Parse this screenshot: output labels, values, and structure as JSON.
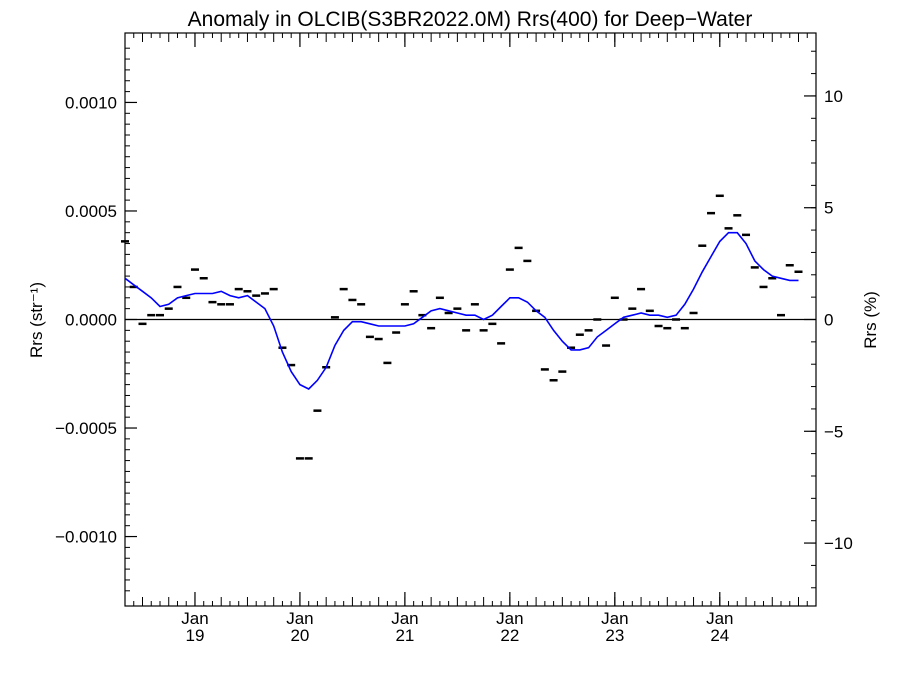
{
  "chart_data": {
    "type": "line",
    "title": "Anomaly in OLCIB(S3BR2022.0M) Rrs(400) for Deep−Water",
    "ylabel_left": "Rrs (str⁻¹)",
    "ylabel_right": "Rrs (%)",
    "x_ticks": [
      {
        "month": "Jan",
        "year": "19"
      },
      {
        "month": "Jan",
        "year": "20"
      },
      {
        "month": "Jan",
        "year": "21"
      },
      {
        "month": "Jan",
        "year": "22"
      },
      {
        "month": "Jan",
        "year": "23"
      },
      {
        "month": "Jan",
        "year": "24"
      }
    ],
    "xlim": [
      "2018-05",
      "2024-12"
    ],
    "ylim": [
      -0.00132,
      0.00132
    ],
    "y_ticks_left": [
      "0.0010",
      "0.0005",
      "0.0000",
      "−0.0005",
      "−0.0010"
    ],
    "y_ticks_left_values": [
      0.001,
      0.0005,
      0,
      -0.0005,
      -0.001
    ],
    "y_ticks_right": [
      "10",
      "5",
      "0",
      "−5",
      "−10"
    ],
    "y_ticks_right_values": [
      10,
      5,
      0,
      -5,
      -10
    ],
    "right_axis_scale": "percent (10% = 0.00103)",
    "zero_line": true,
    "series": [
      {
        "style": "markers",
        "color": "#000000",
        "points": [
          [
            "2018-05",
            0.00036
          ],
          [
            "2018-06",
            0.00015
          ],
          [
            "2018-07",
            -2e-05
          ],
          [
            "2018-08",
            2e-05
          ],
          [
            "2018-09",
            2e-05
          ],
          [
            "2018-10",
            5e-05
          ],
          [
            "2018-11",
            0.00015
          ],
          [
            "2018-12",
            0.0001
          ],
          [
            "2019-01",
            0.00023
          ],
          [
            "2019-02",
            0.00019
          ],
          [
            "2019-03",
            8e-05
          ],
          [
            "2019-04",
            7e-05
          ],
          [
            "2019-05",
            7e-05
          ],
          [
            "2019-06",
            0.00014
          ],
          [
            "2019-07",
            0.00013
          ],
          [
            "2019-08",
            0.00011
          ],
          [
            "2019-09",
            0.00012
          ],
          [
            "2019-10",
            0.00014
          ],
          [
            "2019-11",
            -0.00013
          ],
          [
            "2019-12",
            -0.00021
          ],
          [
            "2020-01",
            -0.00064
          ],
          [
            "2020-02",
            -0.00064
          ],
          [
            "2020-03",
            -0.00042
          ],
          [
            "2020-04",
            -0.00022
          ],
          [
            "2020-05",
            1e-05
          ],
          [
            "2020-06",
            0.00014
          ],
          [
            "2020-07",
            9e-05
          ],
          [
            "2020-08",
            7e-05
          ],
          [
            "2020-09",
            -8e-05
          ],
          [
            "2020-10",
            -9e-05
          ],
          [
            "2020-11",
            -0.0002
          ],
          [
            "2020-12",
            -6e-05
          ],
          [
            "2021-01",
            7e-05
          ],
          [
            "2021-02",
            0.00013
          ],
          [
            "2021-03",
            2e-05
          ],
          [
            "2021-04",
            -4e-05
          ],
          [
            "2021-05",
            0.0001
          ],
          [
            "2021-06",
            3e-05
          ],
          [
            "2021-07",
            5e-05
          ],
          [
            "2021-08",
            -5e-05
          ],
          [
            "2021-09",
            7e-05
          ],
          [
            "2021-10",
            -5e-05
          ],
          [
            "2021-11",
            -2e-05
          ],
          [
            "2021-12",
            -0.00011
          ],
          [
            "2022-01",
            0.00023
          ],
          [
            "2022-02",
            0.00033
          ],
          [
            "2022-03",
            0.00027
          ],
          [
            "2022-04",
            4e-05
          ],
          [
            "2022-05",
            -0.00023
          ],
          [
            "2022-06",
            -0.00028
          ],
          [
            "2022-07",
            -0.00024
          ],
          [
            "2022-08",
            -0.00013
          ],
          [
            "2022-09",
            -7e-05
          ],
          [
            "2022-10",
            -5e-05
          ],
          [
            "2022-11",
            0.0
          ],
          [
            "2022-12",
            -0.00012
          ],
          [
            "2023-01",
            0.0001
          ],
          [
            "2023-02",
            0.0
          ],
          [
            "2023-03",
            5e-05
          ],
          [
            "2023-04",
            0.00014
          ],
          [
            "2023-05",
            4e-05
          ],
          [
            "2023-06",
            -3e-05
          ],
          [
            "2023-07",
            -4e-05
          ],
          [
            "2023-08",
            0.0
          ],
          [
            "2023-09",
            -4e-05
          ],
          [
            "2023-10",
            3e-05
          ],
          [
            "2023-11",
            0.00034
          ],
          [
            "2023-12",
            0.00049
          ],
          [
            "2024-01",
            0.00057
          ],
          [
            "2024-02",
            0.00042
          ],
          [
            "2024-03",
            0.00048
          ],
          [
            "2024-04",
            0.00039
          ],
          [
            "2024-05",
            0.00024
          ],
          [
            "2024-06",
            0.00015
          ],
          [
            "2024-07",
            0.00019
          ],
          [
            "2024-08",
            2e-05
          ],
          [
            "2024-09",
            0.00025
          ],
          [
            "2024-10",
            0.00022
          ]
        ]
      },
      {
        "style": "line",
        "color": "#0000ff",
        "points": [
          [
            "2018-05",
            0.00019
          ],
          [
            "2018-06",
            0.00016
          ],
          [
            "2018-07",
            0.00013
          ],
          [
            "2018-08",
            0.0001
          ],
          [
            "2018-09",
            6e-05
          ],
          [
            "2018-10",
            7e-05
          ],
          [
            "2018-11",
            0.0001
          ],
          [
            "2018-12",
            0.00011
          ],
          [
            "2019-01",
            0.00012
          ],
          [
            "2019-02",
            0.00012
          ],
          [
            "2019-03",
            0.00012
          ],
          [
            "2019-04",
            0.00013
          ],
          [
            "2019-05",
            0.00011
          ],
          [
            "2019-06",
            0.0001
          ],
          [
            "2019-07",
            0.00011
          ],
          [
            "2019-08",
            8e-05
          ],
          [
            "2019-09",
            5e-05
          ],
          [
            "2019-10",
            -3e-05
          ],
          [
            "2019-11",
            -0.00015
          ],
          [
            "2019-12",
            -0.00024
          ],
          [
            "2020-01",
            -0.0003
          ],
          [
            "2020-02",
            -0.00032
          ],
          [
            "2020-03",
            -0.00028
          ],
          [
            "2020-04",
            -0.00022
          ],
          [
            "2020-05",
            -0.00012
          ],
          [
            "2020-06",
            -5e-05
          ],
          [
            "2020-07",
            -1e-05
          ],
          [
            "2020-08",
            -1e-05
          ],
          [
            "2020-09",
            -2e-05
          ],
          [
            "2020-10",
            -3e-05
          ],
          [
            "2020-11",
            -3e-05
          ],
          [
            "2020-12",
            -3e-05
          ],
          [
            "2021-01",
            -3e-05
          ],
          [
            "2021-02",
            -2e-05
          ],
          [
            "2021-03",
            1e-05
          ],
          [
            "2021-04",
            4e-05
          ],
          [
            "2021-05",
            5e-05
          ],
          [
            "2021-06",
            4e-05
          ],
          [
            "2021-07",
            3e-05
          ],
          [
            "2021-08",
            2e-05
          ],
          [
            "2021-09",
            2e-05
          ],
          [
            "2021-10",
            0.0
          ],
          [
            "2021-11",
            2e-05
          ],
          [
            "2021-12",
            6e-05
          ],
          [
            "2022-01",
            0.0001
          ],
          [
            "2022-02",
            0.0001
          ],
          [
            "2022-03",
            8e-05
          ],
          [
            "2022-04",
            4e-05
          ],
          [
            "2022-05",
            1e-05
          ],
          [
            "2022-06",
            -5e-05
          ],
          [
            "2022-07",
            -0.0001
          ],
          [
            "2022-08",
            -0.00014
          ],
          [
            "2022-09",
            -0.00014
          ],
          [
            "2022-10",
            -0.00013
          ],
          [
            "2022-11",
            -8e-05
          ],
          [
            "2022-12",
            -5e-05
          ],
          [
            "2023-01",
            -2e-05
          ],
          [
            "2023-02",
            1e-05
          ],
          [
            "2023-03",
            2e-05
          ],
          [
            "2023-04",
            3e-05
          ],
          [
            "2023-05",
            2e-05
          ],
          [
            "2023-06",
            2e-05
          ],
          [
            "2023-07",
            1e-05
          ],
          [
            "2023-08",
            2e-05
          ],
          [
            "2023-09",
            7e-05
          ],
          [
            "2023-10",
            0.00014
          ],
          [
            "2023-11",
            0.00022
          ],
          [
            "2023-12",
            0.00029
          ],
          [
            "2024-01",
            0.00036
          ],
          [
            "2024-02",
            0.0004
          ],
          [
            "2024-03",
            0.0004
          ],
          [
            "2024-04",
            0.00035
          ],
          [
            "2024-05",
            0.00027
          ],
          [
            "2024-06",
            0.00023
          ],
          [
            "2024-07",
            0.0002
          ],
          [
            "2024-08",
            0.00019
          ],
          [
            "2024-09",
            0.00018
          ],
          [
            "2024-10",
            0.00018
          ]
        ]
      }
    ]
  }
}
